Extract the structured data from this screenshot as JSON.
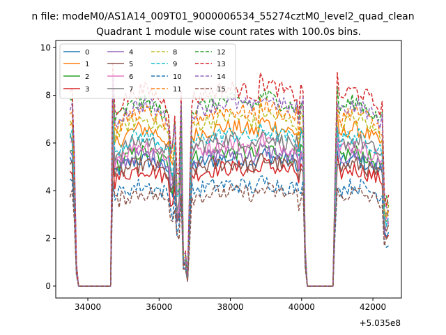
{
  "suptitle": "n file: modeM0/AS1A14_009T01_9000006534_55274cztM0_level2_quad_clean",
  "chart_data": {
    "type": "line",
    "title": "Quadrant 1 module wise count rates with 100.0s bins.",
    "xlabel": "",
    "ylabel": "",
    "x_offset_label": "+5.035e8",
    "xlim": [
      33100,
      42800
    ],
    "ylim": [
      -0.5,
      10.3
    ],
    "xticks": [
      34000,
      36000,
      38000,
      40000,
      42000
    ],
    "xtick_labels": [
      "34000",
      "36000",
      "38000",
      "40000",
      "42000"
    ],
    "yticks": [
      0,
      2,
      4,
      6,
      8,
      10
    ],
    "ytick_labels": [
      "0",
      "2",
      "4",
      "6",
      "8",
      "10"
    ],
    "grid": false,
    "legend_position": "top-left",
    "legend_columns": 4,
    "x_start": 33500,
    "x_step": 60,
    "series": [
      {
        "name": "0",
        "color": "#1f77b4",
        "style": "solid",
        "level": 5.3
      },
      {
        "name": "1",
        "color": "#ff7f0e",
        "style": "solid",
        "level": 6.6
      },
      {
        "name": "2",
        "color": "#2ca02c",
        "style": "solid",
        "level": 5.6
      },
      {
        "name": "3",
        "color": "#d62728",
        "style": "solid",
        "level": 4.9
      },
      {
        "name": "4",
        "color": "#9467bd",
        "style": "solid",
        "level": 5.5
      },
      {
        "name": "5",
        "color": "#8c564b",
        "style": "solid",
        "level": 5.1
      },
      {
        "name": "6",
        "color": "#e377c2",
        "style": "solid",
        "level": 5.9
      },
      {
        "name": "7",
        "color": "#7f7f7f",
        "style": "solid",
        "level": 6.1
      },
      {
        "name": "8",
        "color": "#bcbd22",
        "style": "dashed",
        "level": 7.0
      },
      {
        "name": "9",
        "color": "#17becf",
        "style": "dashed",
        "level": 6.3
      },
      {
        "name": "10",
        "color": "#1f77b4",
        "style": "dashed",
        "level": 4.2
      },
      {
        "name": "11",
        "color": "#ff7f0e",
        "style": "dashed",
        "level": 7.3
      },
      {
        "name": "12",
        "color": "#2ca02c",
        "style": "dashed",
        "level": 7.7
      },
      {
        "name": "13",
        "color": "#d62728",
        "style": "dashed",
        "level": 8.2
      },
      {
        "name": "14",
        "color": "#9467bd",
        "style": "dashed",
        "level": 7.6
      },
      {
        "name": "15",
        "color": "#8c564b",
        "style": "dashed",
        "level": 3.9
      }
    ]
  }
}
